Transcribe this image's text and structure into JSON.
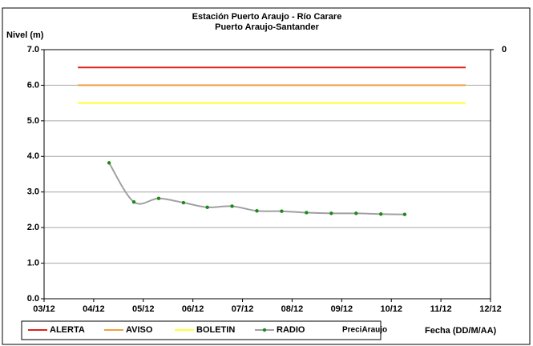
{
  "chart_data": {
    "type": "line",
    "title": "Estación Puerto Araujo - Río Carare",
    "subtitle": "Puerto Araujo-Santander",
    "y_label": "Nivel (m)",
    "x_label": "Fecha (DD/M/AA)",
    "xlim": [
      0,
      9
    ],
    "xticks": [
      {
        "value": 0,
        "label": "03/12"
      },
      {
        "value": 1,
        "label": "04/12"
      },
      {
        "value": 2,
        "label": "05/12"
      },
      {
        "value": 3,
        "label": "06/12"
      },
      {
        "value": 4,
        "label": "07/12"
      },
      {
        "value": 5,
        "label": "08/12"
      },
      {
        "value": 6,
        "label": "09/12"
      },
      {
        "value": 7,
        "label": "10/12"
      },
      {
        "value": 8,
        "label": "11/12"
      },
      {
        "value": 9,
        "label": "12/12"
      }
    ],
    "ylim": [
      0,
      7
    ],
    "yticks": [
      {
        "value": 0,
        "label": "0.0"
      },
      {
        "value": 1,
        "label": "1.0"
      },
      {
        "value": 2,
        "label": "2.0"
      },
      {
        "value": 3,
        "label": "3.0"
      },
      {
        "value": 4,
        "label": "4.0"
      },
      {
        "value": 5,
        "label": "5.0"
      },
      {
        "value": 6,
        "label": "6.0"
      },
      {
        "value": 7,
        "label": "7.0"
      }
    ],
    "y2ticks": [
      0
    ],
    "grid": true,
    "legend": "bottom",
    "series": [
      {
        "name": "ALERTA",
        "color": "#e0201b",
        "x": [
          0.68,
          8.5
        ],
        "values": [
          6.5,
          6.5
        ]
      },
      {
        "name": "AVISO",
        "color": "#f0a040",
        "x": [
          0.68,
          8.5
        ],
        "values": [
          6.0,
          6.0
        ]
      },
      {
        "name": "BOLETIN",
        "color": "#ffff33",
        "x": [
          0.68,
          8.5
        ],
        "values": [
          5.5,
          5.5
        ]
      },
      {
        "name": "RADIO",
        "color": "#a0a0a0",
        "marker_color": "#1a8a1a",
        "x": [
          1.31,
          1.81,
          2.31,
          2.81,
          3.29,
          3.79,
          4.29,
          4.79,
          5.29,
          5.79,
          6.29,
          6.79,
          7.27
        ],
        "values": [
          3.82,
          2.72,
          2.82,
          2.7,
          2.57,
          2.6,
          2.47,
          2.46,
          2.42,
          2.4,
          2.4,
          2.38,
          2.37
        ]
      },
      {
        "name": "PreciAraujo",
        "color": "#4472c4",
        "axis": "y2",
        "x": [],
        "values": []
      }
    ]
  }
}
